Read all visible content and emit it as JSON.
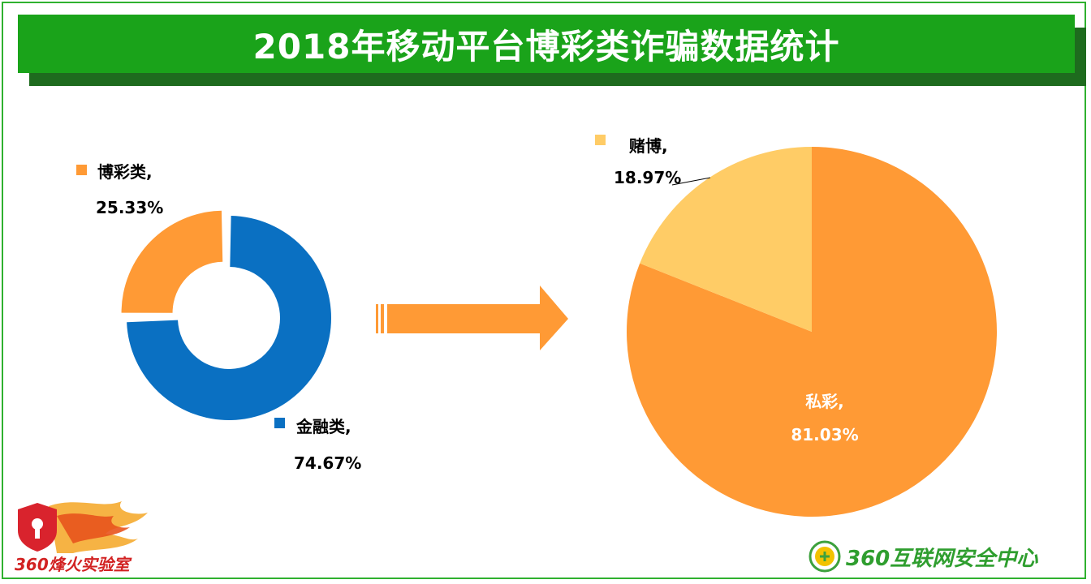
{
  "title": "2018年移动平台博彩类诈骗数据统计",
  "colors": {
    "banner": "#1aa31a",
    "banner_shadow": "#1e6b1e",
    "orange": "#ff9a35",
    "blue": "#0a70c2",
    "light_orange": "#ffcc66"
  },
  "chart_data": [
    {
      "type": "pie",
      "variant": "donut",
      "slices": [
        {
          "name": "博彩类",
          "value": 25.33,
          "label_name": "博彩类,",
          "label_value": "25.33%",
          "color": "#ff9a35"
        },
        {
          "name": "金融类",
          "value": 74.67,
          "label_name": "金融类,",
          "label_value": "74.67%",
          "color": "#0a70c2"
        }
      ]
    },
    {
      "type": "pie",
      "slices": [
        {
          "name": "赌博",
          "value": 18.97,
          "label_name": "赌博,",
          "label_value": "18.97%",
          "color": "#ffcc66"
        },
        {
          "name": "私彩",
          "value": 81.03,
          "label_name": "私彩,",
          "label_value": "81.03%",
          "color": "#ff9a35"
        }
      ]
    }
  ],
  "logos": {
    "left_text": "360烽火实验室",
    "right_text": "360互联网安全中心",
    "left_icon": "lock-flame-icon",
    "right_icon": "globe-shield-icon"
  }
}
